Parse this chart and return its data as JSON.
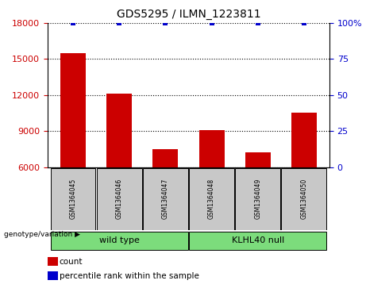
{
  "title": "GDS5295 / ILMN_1223811",
  "samples": [
    "GSM1364045",
    "GSM1364046",
    "GSM1364047",
    "GSM1364048",
    "GSM1364049",
    "GSM1364050"
  ],
  "counts": [
    15500,
    12100,
    7500,
    9100,
    7200,
    10500
  ],
  "percentiles": [
    100,
    100,
    100,
    100,
    100,
    100
  ],
  "ylim_left": [
    6000,
    18000
  ],
  "ylim_right": [
    0,
    100
  ],
  "yticks_left": [
    6000,
    9000,
    12000,
    15000,
    18000
  ],
  "yticks_right": [
    0,
    25,
    50,
    75,
    100
  ],
  "bar_color": "#cc0000",
  "percentile_color": "#0000cc",
  "groups": [
    {
      "label": "wild type",
      "indices": [
        0,
        1,
        2
      ],
      "color": "#7cdc7c"
    },
    {
      "label": "KLHL40 null",
      "indices": [
        3,
        4,
        5
      ],
      "color": "#7cdc7c"
    }
  ],
  "group_label_prefix": "genotype/variation",
  "group_arrow": "▶",
  "legend_items": [
    {
      "color": "#cc0000",
      "label": "count"
    },
    {
      "color": "#0000cc",
      "label": "percentile rank within the sample"
    }
  ],
  "background_color": "#ffffff",
  "tick_label_color_left": "#cc0000",
  "tick_label_color_right": "#0000cc",
  "sample_box_color": "#c8c8c8",
  "bar_width": 0.55,
  "xlim": [
    -0.55,
    5.55
  ]
}
